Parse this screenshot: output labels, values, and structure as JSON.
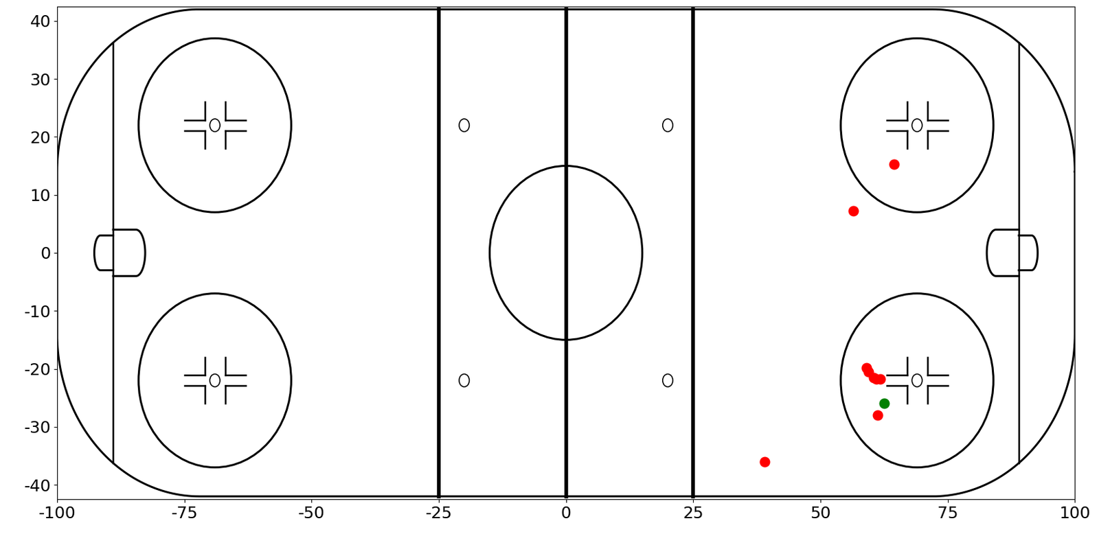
{
  "chart_data": {
    "type": "scatter",
    "xlim": [
      -100,
      100
    ],
    "ylim": [
      -42.5,
      42.5
    ],
    "xticks": [
      -100,
      -75,
      -50,
      -25,
      0,
      25,
      50,
      75,
      100
    ],
    "yticks": [
      -40,
      -30,
      -20,
      -10,
      0,
      10,
      20,
      30,
      40
    ],
    "grid": false,
    "series": [
      {
        "color": "red",
        "marker": "o",
        "x": [
          64.5,
          56.5,
          59.0,
          59.5,
          60.5,
          61.0,
          61.8,
          61.2,
          39.0
        ],
        "y": [
          15.3,
          7.3,
          -19.8,
          -20.5,
          -21.5,
          -21.8,
          -21.8,
          -28.0,
          -36.0
        ]
      },
      {
        "color": "green",
        "marker": "o",
        "x": [
          62.5
        ],
        "y": [
          -26.0
        ]
      }
    ]
  }
}
